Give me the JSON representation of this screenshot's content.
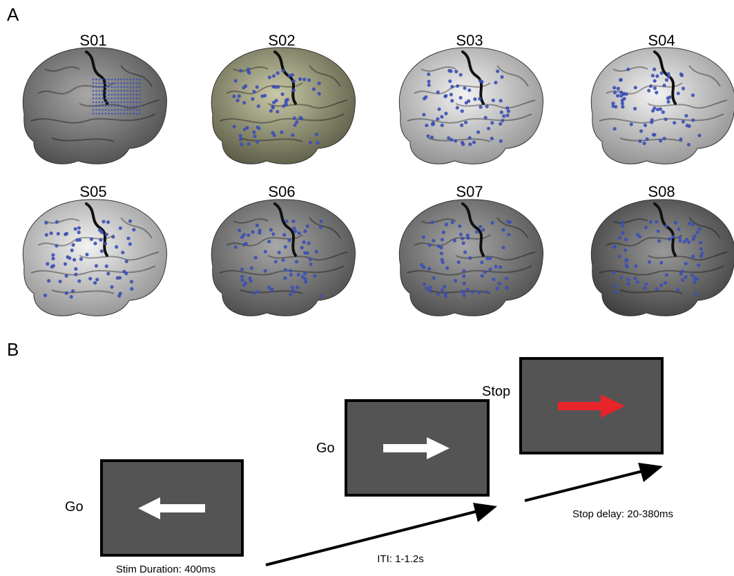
{
  "panel_a": {
    "label": "A",
    "subjects": [
      "S01",
      "S02",
      "S03",
      "S04",
      "S05",
      "S06",
      "S07",
      "S08"
    ]
  },
  "panel_b": {
    "label": "B",
    "cues": [
      "Go",
      "Go",
      "Stop"
    ],
    "stim_duration": "Stim Duration: 400ms",
    "iti": "ITI: 1-1.2s",
    "stop_delay": "Stop delay: 20-380ms"
  }
}
